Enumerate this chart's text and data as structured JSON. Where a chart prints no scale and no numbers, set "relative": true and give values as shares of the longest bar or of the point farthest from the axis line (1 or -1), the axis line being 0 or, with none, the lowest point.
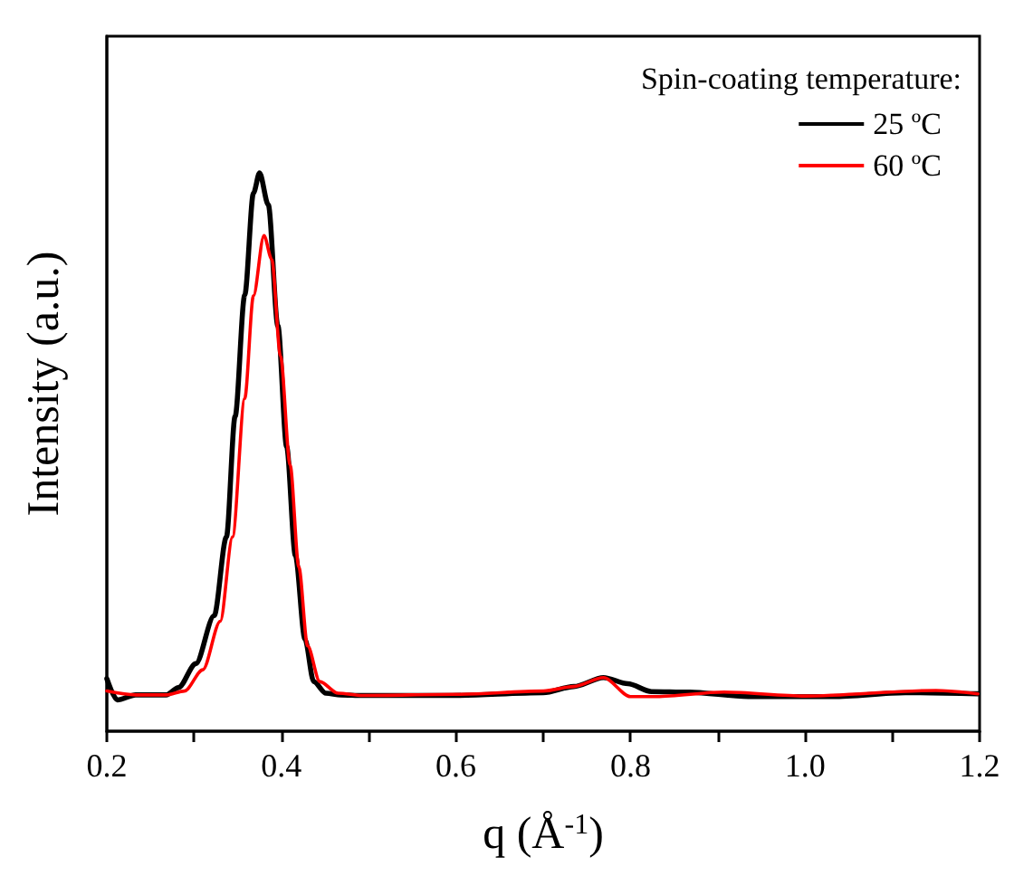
{
  "chart_data": {
    "type": "line",
    "relative": true,
    "xlabel": "q (Å$^{-1}$)",
    "ylabel": "Intensity (a.u.)",
    "legend_title": "Spin-coating temperature:",
    "legend": "top right",
    "xlim": [
      0.2,
      1.2
    ],
    "xticks": [
      0.2,
      {
        "value": 0.3,
        "label": null
      },
      0.4,
      {
        "value": 0.5,
        "label": null
      },
      0.6,
      {
        "value": 0.7,
        "label": null
      },
      0.8,
      {
        "value": 0.9,
        "label": null
      },
      {
        "value": 1,
        "label": "1.0"
      },
      {
        "value": 1.1,
        "label": null
      },
      1.2
    ],
    "series": [
      {
        "name": "25 ºC",
        "color": "#000000",
        "x": [
          0.2,
          0.212,
          0.233,
          0.268,
          0.282,
          0.302,
          0.323,
          0.337,
          0.347,
          0.358,
          0.368,
          0.375,
          0.385,
          0.396,
          0.406,
          0.416,
          0.427,
          0.437,
          0.451,
          0.468,
          0.493,
          0.596,
          0.7,
          0.735,
          0.769,
          0.797,
          0.824,
          0.866,
          0.935,
          1.032,
          1.115,
          1.198
        ],
        "values": [
          0.094,
          0.056,
          0.065,
          0.065,
          0.078,
          0.121,
          0.207,
          0.348,
          0.564,
          0.781,
          0.964,
          1,
          0.943,
          0.726,
          0.51,
          0.315,
          0.165,
          0.089,
          0.068,
          0.065,
          0.064,
          0.064,
          0.069,
          0.08,
          0.096,
          0.085,
          0.071,
          0.07,
          0.062,
          0.062,
          0.069,
          0.067
        ]
      },
      {
        "name": "60 ºC",
        "color": "#ff0000",
        "x": [
          0.2,
          0.233,
          0.268,
          0.289,
          0.31,
          0.33,
          0.344,
          0.358,
          0.368,
          0.38,
          0.389,
          0.399,
          0.41,
          0.42,
          0.43,
          0.444,
          0.465,
          0.493,
          0.6,
          0.7,
          0.735,
          0.769,
          0.8,
          0.83,
          0.907,
          1.0,
          1.15,
          1.198
        ],
        "values": [
          0.072,
          0.065,
          0.065,
          0.072,
          0.11,
          0.197,
          0.348,
          0.596,
          0.78,
          0.888,
          0.845,
          0.672,
          0.477,
          0.294,
          0.153,
          0.089,
          0.068,
          0.064,
          0.066,
          0.072,
          0.08,
          0.096,
          0.062,
          0.062,
          0.07,
          0.063,
          0.073,
          0.067
        ]
      }
    ]
  }
}
